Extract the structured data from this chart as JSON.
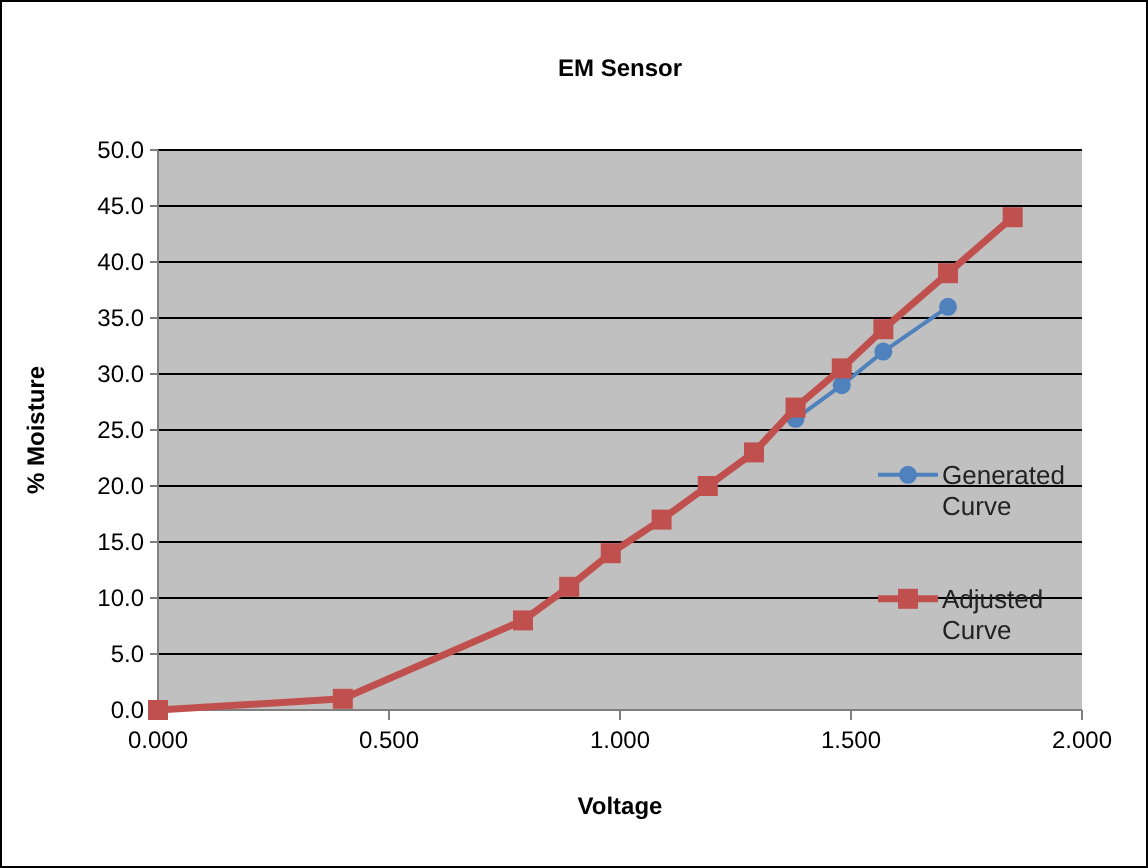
{
  "chart_data": {
    "type": "line",
    "title": "EM Sensor",
    "xlabel": "Voltage",
    "ylabel": "% Moisture",
    "xlim": [
      0,
      2
    ],
    "xticks": [
      {
        "value": 0,
        "label": "0.000"
      },
      {
        "value": 0.5,
        "label": "0.500"
      },
      {
        "value": 1,
        "label": "1.000"
      },
      {
        "value": 1.5,
        "label": "1.500"
      },
      {
        "value": 2,
        "label": "2.000"
      }
    ],
    "ylim": [
      0,
      50
    ],
    "yticks": [
      {
        "value": 0,
        "label": "0.0"
      },
      {
        "value": 5,
        "label": "5.0"
      },
      {
        "value": 10,
        "label": "10.0"
      },
      {
        "value": 15,
        "label": "15.0"
      },
      {
        "value": 20,
        "label": "20.0"
      },
      {
        "value": 25,
        "label": "25.0"
      },
      {
        "value": 30,
        "label": "30.0"
      },
      {
        "value": 35,
        "label": "35.0"
      },
      {
        "value": 40,
        "label": "40.0"
      },
      {
        "value": 45,
        "label": "45.0"
      },
      {
        "value": 50,
        "label": "50.0"
      }
    ],
    "grid": "y",
    "legend": "right",
    "series": [
      {
        "name": "Generated Curve",
        "color": "#4f81bd",
        "marker": "circle",
        "x": [
          1.38,
          1.48,
          1.57,
          1.71
        ],
        "values": [
          26,
          29,
          32,
          36
        ]
      },
      {
        "name": "Adjusted Curve",
        "color": "#c0504d",
        "marker": "square",
        "x": [
          0,
          0.4,
          0.79,
          0.89,
          0.98,
          1.09,
          1.19,
          1.29,
          1.38,
          1.48,
          1.57,
          1.71,
          1.85
        ],
        "values": [
          0,
          1,
          8,
          11,
          14,
          17,
          20,
          23,
          27,
          30.5,
          34,
          39,
          44
        ]
      }
    ]
  }
}
